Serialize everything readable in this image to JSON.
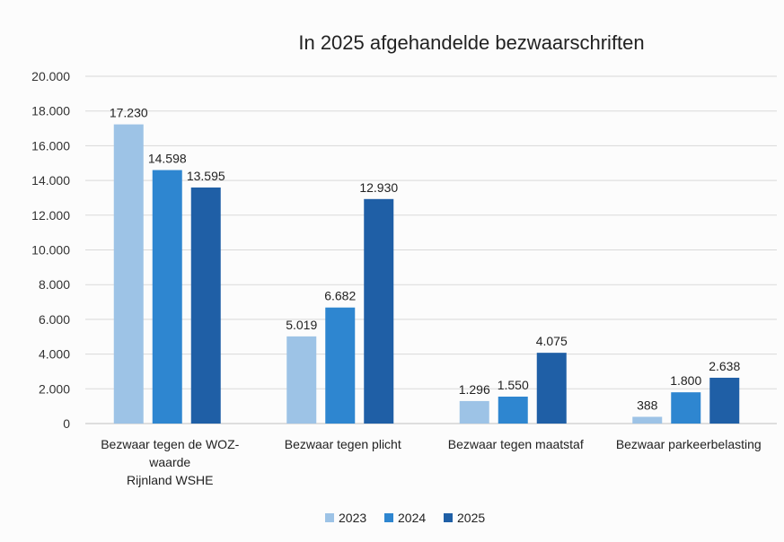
{
  "chart_data": {
    "type": "bar",
    "title": "In 2025 afgehandelde bezwaarschriften",
    "xlabel": "",
    "ylabel": "",
    "ylim": [
      0,
      20000
    ],
    "yticks": [
      "0",
      "2.000",
      "4.000",
      "6.000",
      "8.000",
      "10.000",
      "12.000",
      "14.000",
      "16.000",
      "18.000",
      "20.000"
    ],
    "ytick_values": [
      0,
      2000,
      4000,
      6000,
      8000,
      10000,
      12000,
      14000,
      16000,
      18000,
      20000
    ],
    "grid": true,
    "legend": "bottom",
    "categories": [
      [
        "Bezwaar tegen de WOZ-",
        "waarde",
        "Rijnland WSHE"
      ],
      [
        "Bezwaar tegen plicht"
      ],
      [
        "Bezwaar tegen maatstaf"
      ],
      [
        "Bezwaar parkeerbelasting"
      ]
    ],
    "series": [
      {
        "name": "2023",
        "color": "#9dc3e6",
        "values": [
          17230,
          5019,
          1296,
          388
        ],
        "labels": [
          "17.230",
          "5.019",
          "1.296",
          "388"
        ],
        "label_color": "#222222",
        "special_label_colors": [
          null,
          null,
          null,
          "#8db4da"
        ]
      },
      {
        "name": "2024",
        "color": "#2e86d0",
        "values": [
          14598,
          6682,
          1550,
          1800
        ],
        "labels": [
          "14.598",
          "6.682",
          "1.550",
          "1.800"
        ]
      },
      {
        "name": "2025",
        "color": "#1f5fa6",
        "values": [
          13595,
          12930,
          4075,
          2638
        ],
        "labels": [
          "13.595",
          "12.930",
          "4.075",
          "2.638"
        ]
      }
    ]
  }
}
